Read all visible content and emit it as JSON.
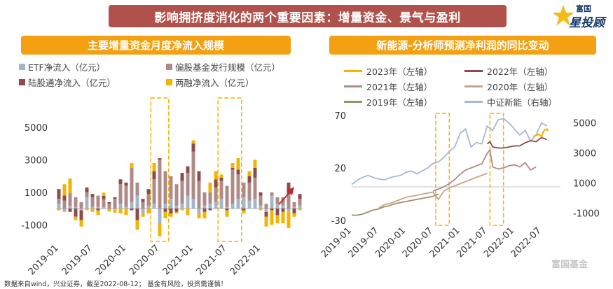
{
  "main_title": "影响拥挤度消化的两个重要因素：增量资金、景气与盈利",
  "logo": {
    "top": "富国",
    "main": "星投顾"
  },
  "watermark": "富国基金",
  "footnote": "数据来自wind，兴业证券，截至2022-08-12； 基金有风险，投资需谨慎！",
  "colors": {
    "etf": "#a3b6c8",
    "fund": "#b08a86",
    "stockconnect": "#8d4b49",
    "margin": "#f4b400",
    "y2023": "#f4b400",
    "y2022": "#8d4b49",
    "y2021": "#b08a86",
    "y2020": "#c7a58a",
    "y2019": "#a48d6a",
    "index": "#a7b9cc",
    "highlight": "#f4b400",
    "arrow": "#c0282d"
  },
  "chart_data": [
    {
      "type": "bar",
      "stacked": true,
      "title": "主要增量资金月度净流入规模",
      "legend": [
        {
          "key": "etf",
          "label": "ETF净流入（亿元）"
        },
        {
          "key": "fund",
          "label": "偏股基金发行规模（亿元）"
        },
        {
          "key": "stockconnect",
          "label": "陆股通净流入（亿元）"
        },
        {
          "key": "margin",
          "label": "两融净流入（亿元）"
        }
      ],
      "ylim": [
        -1800,
        6800
      ],
      "yticks": [
        -1000,
        1000,
        3000,
        5000
      ],
      "xticks": [
        "2019-01",
        "2019-07",
        "2020-01",
        "2020-07",
        "2021-01",
        "2021-07",
        "2022-01"
      ],
      "categories": [
        "2019-01",
        "2019-02",
        "2019-03",
        "2019-04",
        "2019-05",
        "2019-06",
        "2019-07",
        "2019-08",
        "2019-09",
        "2019-10",
        "2019-11",
        "2019-12",
        "2020-01",
        "2020-02",
        "2020-03",
        "2020-04",
        "2020-05",
        "2020-06",
        "2020-07",
        "2020-08",
        "2020-09",
        "2020-10",
        "2020-11",
        "2020-12",
        "2021-01",
        "2021-02",
        "2021-03",
        "2021-04",
        "2021-05",
        "2021-06",
        "2021-07",
        "2021-08",
        "2021-09",
        "2021-10",
        "2021-11",
        "2021-12",
        "2022-01",
        "2022-02",
        "2022-03",
        "2022-04",
        "2022-05",
        "2022-06",
        "2022-07",
        "2022-08"
      ],
      "series": [
        {
          "name": "ETF净流入（亿元）",
          "key": "etf",
          "values": [
            300,
            -200,
            150,
            100,
            -100,
            700,
            100,
            100,
            80,
            -80,
            -50,
            300,
            100,
            400,
            800,
            -300,
            200,
            300,
            -900,
            300,
            600,
            200,
            300,
            800,
            600,
            -300,
            200,
            300,
            400,
            600,
            100,
            300,
            600,
            700,
            500,
            600,
            200,
            -200,
            800,
            300,
            200,
            -200,
            100,
            200
          ]
        },
        {
          "name": "偏股基金发行规模（亿元）",
          "key": "fund",
          "values": [
            300,
            500,
            800,
            600,
            400,
            300,
            600,
            700,
            500,
            300,
            600,
            1200,
            1300,
            2100,
            800,
            400,
            700,
            1500,
            3000,
            2000,
            1400,
            1300,
            1400,
            1400,
            2900,
            1700,
            800,
            700,
            900,
            1100,
            1300,
            2100,
            1500,
            900,
            1100,
            1300,
            600,
            300,
            200,
            400,
            500,
            900,
            300,
            400
          ]
        },
        {
          "name": "陆股通净流入（亿元）",
          "key": "stockconnect",
          "values": [
            600,
            300,
            -200,
            -500,
            -600,
            300,
            200,
            -100,
            200,
            100,
            100,
            300,
            200,
            -100,
            -700,
            200,
            300,
            500,
            100,
            -200,
            -300,
            -200,
            500,
            400,
            500,
            600,
            -200,
            -100,
            500,
            200,
            -100,
            100,
            300,
            -100,
            400,
            600,
            200,
            -300,
            -100,
            -400,
            -200,
            700,
            -300,
            300
          ]
        },
        {
          "name": "两融净流入（亿元）",
          "key": "margin",
          "values": [
            -100,
            700,
            900,
            -200,
            -400,
            -100,
            -200,
            -300,
            200,
            -100,
            -200,
            -300,
            -400,
            300,
            -600,
            -200,
            -300,
            500,
            -800,
            -400,
            -200,
            -100,
            -100,
            -400,
            200,
            -300,
            -400,
            600,
            500,
            200,
            -400,
            300,
            700,
            -200,
            300,
            500,
            -100,
            -600,
            -900,
            -500,
            -700,
            -1000,
            -200,
            -100
          ]
        }
      ],
      "highlight_periods": [
        [
          "2020-06",
          "2020-08"
        ],
        [
          "2021-06",
          "2021-09"
        ]
      ],
      "annotation": "arrow-up-right"
    },
    {
      "type": "line",
      "title": "新能源-分析师预测净利润的同比变动",
      "y_left": {
        "ylim": [
          -30,
          70
        ],
        "ticks": [
          -30,
          20,
          70
        ],
        "label": "左轴"
      },
      "y_right": {
        "ylim": [
          -1500,
          5500
        ],
        "ticks": [
          -1000,
          1000,
          3000,
          5000
        ],
        "label": "右轴"
      },
      "xticks": [
        "2019-01",
        "2019-07",
        "2020-01",
        "2020-07",
        "2021-01",
        "2021-07",
        "2022-01",
        "2022-07"
      ],
      "x_range": [
        "2019-01",
        "2022-10"
      ],
      "legend": [
        {
          "key": "y2023",
          "label": "2023年（左轴）"
        },
        {
          "key": "y2022",
          "label": "2022年（左轴）"
        },
        {
          "key": "y2021",
          "label": "2021年（左轴）"
        },
        {
          "key": "y2020",
          "label": "2020年（左轴）"
        },
        {
          "key": "y2019",
          "label": "2019年（左轴）"
        },
        {
          "key": "index",
          "label": "中证新能（右轴）"
        }
      ],
      "series": [
        {
          "name": "2023年（左轴）",
          "key": "y2023",
          "axis": "left",
          "x": [
            2022.35,
            2022.45,
            2022.5,
            2022.55,
            2022.6,
            2022.62
          ],
          "values": [
            50,
            52,
            50,
            56,
            57,
            55
          ]
        },
        {
          "name": "2022年（左轴）",
          "key": "y2022",
          "axis": "left",
          "x": [
            2021.5,
            2021.55,
            2021.6,
            2021.7,
            2021.8,
            2021.9,
            2022.0,
            2022.1,
            2022.2,
            2022.3,
            2022.4,
            2022.5,
            2022.6
          ],
          "values": [
            43,
            45,
            40,
            39,
            39,
            40,
            41,
            41,
            44,
            46,
            45,
            49,
            47
          ]
        },
        {
          "name": "2021年（左轴）",
          "key": "y2021",
          "axis": "left",
          "x": [
            2020.5,
            2020.6,
            2020.7,
            2020.8,
            2020.9,
            2021.0,
            2021.1,
            2021.2,
            2021.3,
            2021.4,
            2021.5,
            2021.55,
            2021.6,
            2021.7,
            2021.8,
            2021.9,
            2022.0,
            2022.1,
            2022.2,
            2022.3,
            2022.4
          ],
          "values": [
            -2,
            0,
            2,
            5,
            9,
            14,
            18,
            20,
            22,
            24,
            34,
            37,
            21,
            19,
            20,
            22,
            23,
            21,
            25,
            18,
            21
          ]
        },
        {
          "name": "2020年（左轴）",
          "key": "y2020",
          "axis": "left",
          "x": [
            2019.5,
            2019.6,
            2019.7,
            2019.8,
            2019.9,
            2020.0,
            2020.1,
            2020.2,
            2020.3,
            2020.4,
            2020.5,
            2020.6,
            2020.7,
            2020.8,
            2020.9,
            2021.0,
            2021.1,
            2021.2,
            2021.3,
            2021.4,
            2021.5
          ],
          "values": [
            -18,
            -15,
            -14,
            -12,
            -10,
            -8,
            -7,
            -6,
            -5,
            -4,
            -3,
            -10,
            -2,
            1,
            3,
            5,
            7,
            9,
            11,
            13,
            15
          ]
        },
        {
          "name": "2019年（左轴）",
          "key": "y2019",
          "axis": "left",
          "x": [
            2019.0,
            2019.1,
            2019.2,
            2019.3,
            2019.4,
            2019.5,
            2019.6,
            2019.7,
            2019.8,
            2019.9,
            2020.0,
            2020.1,
            2020.2,
            2020.3,
            2020.4,
            2020.5,
            2020.6
          ],
          "values": [
            -25,
            -25,
            -24,
            -22,
            -20,
            -19,
            -17,
            -16,
            -14,
            -13,
            -12,
            -11,
            -10,
            -9,
            -8,
            -7,
            -5
          ]
        },
        {
          "name": "中证新能（右轴）",
          "key": "index",
          "axis": "right",
          "x": [
            2019.0,
            2019.15,
            2019.3,
            2019.45,
            2019.6,
            2019.75,
            2019.9,
            2020.0,
            2020.1,
            2020.2,
            2020.3,
            2020.4,
            2020.5,
            2020.6,
            2020.7,
            2020.8,
            2020.9,
            2021.0,
            2021.1,
            2021.2,
            2021.3,
            2021.4,
            2021.5,
            2021.6,
            2021.7,
            2021.8,
            2021.9,
            2022.0,
            2022.1,
            2022.2,
            2022.3,
            2022.4,
            2022.5,
            2022.6
          ],
          "values": [
            900,
            1300,
            1500,
            1300,
            1200,
            1400,
            1500,
            1700,
            1800,
            1600,
            1800,
            2000,
            2300,
            2400,
            2700,
            3100,
            3400,
            4300,
            4600,
            3400,
            3700,
            3600,
            4800,
            4500,
            5200,
            5300,
            5000,
            4600,
            4200,
            4500,
            3800,
            4200,
            5000,
            4800
          ]
        }
      ],
      "highlight_periods": [
        [
          2020.55,
          2020.8
        ],
        [
          2021.55,
          2021.8
        ]
      ]
    }
  ]
}
